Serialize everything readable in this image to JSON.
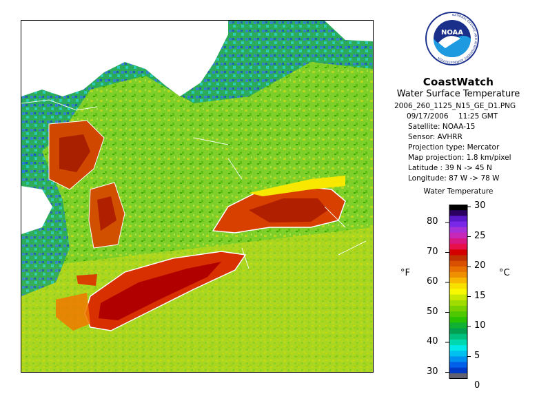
{
  "header": {
    "brand": "CoastWatch",
    "product": "Water Surface Temperature",
    "filename": "2006_260_1125_N15_GE_D1.PNG",
    "date": "09/17/2006",
    "time": "11:25 GMT",
    "satellite": "Satellite: NOAA-15",
    "sensor": "Sensor: AVHRR",
    "projection_type": "Projection type:  Mercator",
    "map_projection": "Map projection: 1.8 km/pixel",
    "latitude": "Latitude : 39 N -> 45 N",
    "longitude": "Longitude: 87 W -> 78 W",
    "logo_text": "NOAA",
    "logo_ring_text": "NATIONAL OCEANIC AND ATMOSPHERIC ADMINISTRATION"
  },
  "colorbar": {
    "title": "Water Temperature",
    "unit_left": "°F",
    "unit_right": "°C",
    "fahrenheit_ticks": [
      "80",
      "70",
      "60",
      "50",
      "40",
      "30"
    ],
    "celsius_ticks": [
      "30",
      "25",
      "20",
      "15",
      "10",
      "5",
      "0"
    ],
    "colors": [
      "#000000",
      "#2a0060",
      "#5a18c8",
      "#7a28e8",
      "#a830d8",
      "#c828b8",
      "#d81880",
      "#e8104a",
      "#d40000",
      "#c03000",
      "#d85000",
      "#e87000",
      "#f09000",
      "#f8b800",
      "#f8e000",
      "#f8f800",
      "#c8e800",
      "#a0dc00",
      "#78d000",
      "#50c800",
      "#28c000",
      "#10b030",
      "#00a050",
      "#00c080",
      "#00d8b0",
      "#00e8e8",
      "#00c0f0",
      "#0090f0",
      "#0060e8",
      "#0038c8",
      "#606070"
    ]
  },
  "map": {
    "colors": {
      "land_green": "#7fcf2a",
      "land_yellow": "#b8d820",
      "land_dark_green": "#3aa800",
      "cloud_blue": "#2a7be0",
      "cloud_cyan": "#20c8c8",
      "ice_white": "#ffffff",
      "lake_erie_dark": "#b00000",
      "lake_erie": "#d83000",
      "lake_ontario": "#d84000",
      "lake_orange": "#f07800",
      "yellow_band": "#f8e800",
      "shoreline": "#ffffff"
    }
  }
}
